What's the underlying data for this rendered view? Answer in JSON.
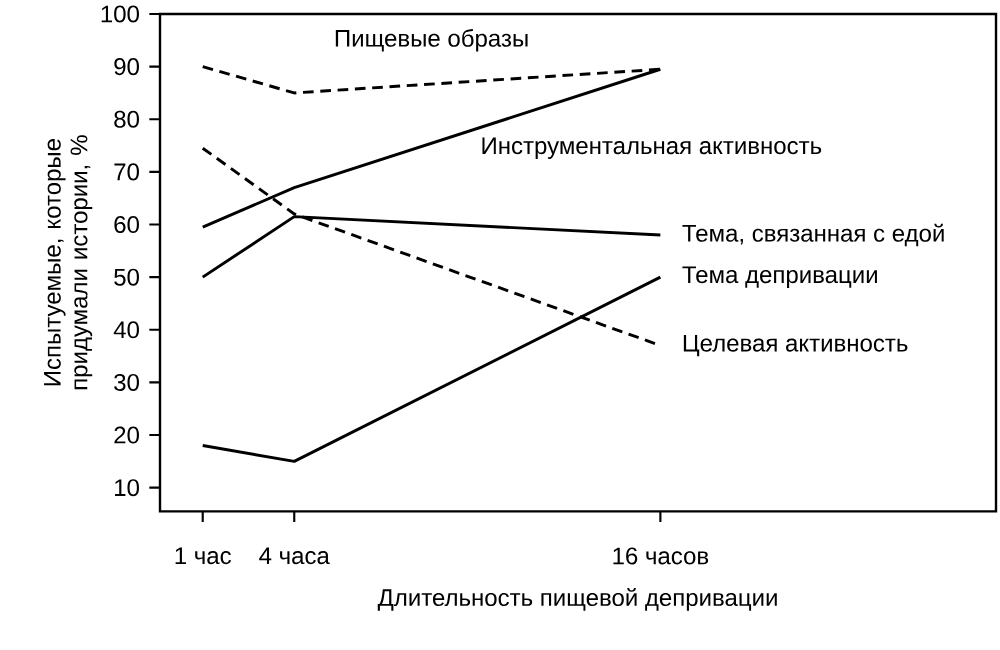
{
  "chart_data": {
    "type": "line",
    "xlabel": "Длительность пищевой депривации",
    "ylabel": "Испытуемые, которые придумали истории, %",
    "x": [
      1,
      4,
      16
    ],
    "xlim": [
      -0.4,
      27
    ],
    "xticks": [
      {
        "value": 1,
        "label": "1 час"
      },
      {
        "value": 4,
        "label": "4 часа"
      },
      {
        "value": 16,
        "label": "16 часов"
      }
    ],
    "ylim": [
      5.5,
      100
    ],
    "yticks": [
      10,
      20,
      30,
      40,
      50,
      60,
      70,
      80,
      90,
      100
    ],
    "legend": false,
    "grid": false,
    "marker": "none",
    "series": [
      {
        "name": "Пищевые образы",
        "color": "#000000",
        "line_style": "dashed",
        "values": [
          90,
          85,
          89.5
        ]
      },
      {
        "name": "Инструментальная активность",
        "color": "#000000",
        "line_style": "solid",
        "values": [
          59.5,
          67,
          89.5
        ]
      },
      {
        "name": "Тема, связанная с едой",
        "color": "#000000",
        "line_style": "solid",
        "values": [
          50,
          61.5,
          58
        ]
      },
      {
        "name": "Тема депривации",
        "color": "#000000",
        "line_style": "solid",
        "values": [
          18,
          15,
          50
        ]
      },
      {
        "name": "Целевая активность",
        "color": "#000000",
        "line_style": "dashed",
        "values": [
          74.5,
          62,
          37
        ]
      }
    ]
  }
}
